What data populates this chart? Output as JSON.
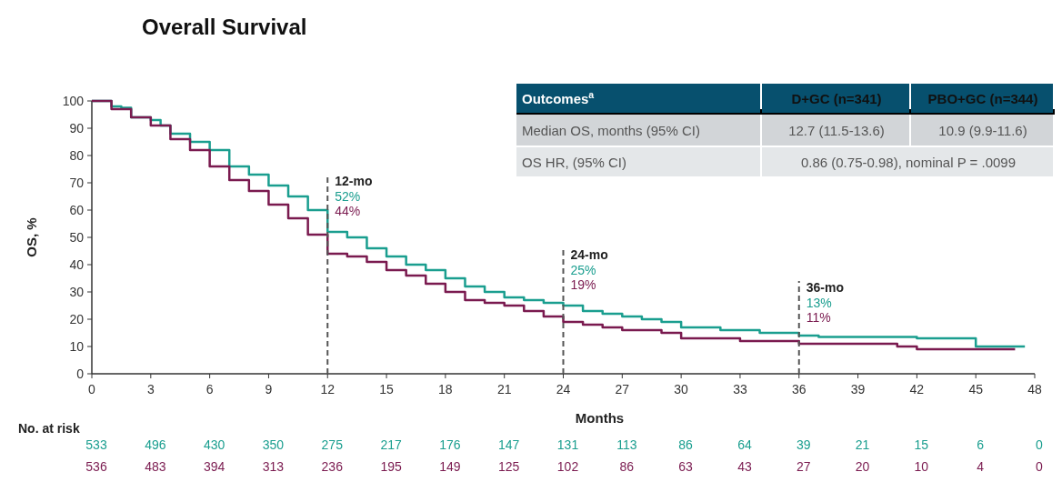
{
  "chart_data": {
    "type": "step",
    "title": "Overall Survival",
    "xlabel": "Months",
    "ylabel": "OS, %",
    "x": [
      0,
      1,
      1.5,
      2,
      3,
      3.5,
      4,
      5,
      6,
      7,
      8,
      9,
      10,
      11,
      12,
      13,
      14,
      15,
      16,
      17,
      18,
      19,
      20,
      21,
      22,
      23,
      24,
      25,
      26,
      27,
      28,
      29,
      30,
      32,
      34,
      36,
      37,
      42,
      45,
      47.5
    ],
    "series": [
      {
        "color": "#1a9e8f",
        "values": [
          100,
          98,
          97.5,
          94,
          93,
          91,
          88,
          85,
          82,
          76,
          73,
          69,
          65,
          60,
          52,
          50,
          46,
          43,
          40,
          38,
          35,
          32,
          30,
          28,
          27,
          26,
          25,
          23,
          22,
          21,
          20,
          19,
          17,
          16,
          15,
          14,
          13.5,
          13,
          10,
          10
        ]
      },
      {
        "color": "#7a1a4f",
        "x": [
          0,
          1,
          2,
          3,
          4,
          5,
          6,
          7,
          8,
          9,
          10,
          11,
          12,
          13,
          14,
          15,
          16,
          17,
          18,
          19,
          20,
          21,
          22,
          23,
          24,
          25,
          26,
          27,
          29,
          30,
          33,
          36,
          41,
          42,
          47
        ],
        "values": [
          100,
          97,
          94,
          91,
          86,
          82,
          76,
          71,
          67,
          62,
          57,
          51,
          44,
          43,
          41,
          38,
          36,
          33,
          30,
          27,
          26,
          25,
          23,
          21,
          19,
          18,
          17,
          16,
          15,
          13,
          12,
          11,
          10,
          9,
          9
        ]
      }
    ],
    "xlim": [
      0,
      48
    ],
    "xticks": [
      0,
      3,
      6,
      9,
      12,
      15,
      18,
      21,
      24,
      27,
      30,
      33,
      36,
      39,
      42,
      45,
      48
    ],
    "ylim": [
      0,
      100
    ],
    "yticks": [
      0,
      10,
      20,
      30,
      40,
      50,
      60,
      70,
      80,
      90,
      100
    ],
    "grid": false,
    "marker": "none",
    "line_style": "solid",
    "ref_lines": [
      {
        "axis": "x",
        "value": 12,
        "label": "12-mo",
        "line_style": "dashed"
      },
      {
        "axis": "x",
        "value": 24,
        "label": "24-mo",
        "line_style": "dashed"
      },
      {
        "axis": "x",
        "value": 36,
        "label": "36-mo",
        "line_style": "dashed"
      }
    ],
    "annotations": [
      "Outcomes$^{a}$",
      "D+GC (n=341)",
      "PBO+GC (n=344)",
      "Median OS, months (95% CI)",
      "12.7 (11.5-13.6)",
      "10.9 (9.9-11.6)",
      "OS HR, (95% CI)",
      "0.86 (0.75-0.98), nominal P = .0099",
      "No. at risk",
      "533 496 430 350 275 217 176 147 131 113 86 64 39 21 15 6 0",
      "536 483 394 313 236 195 149 125 102 86 63 43 27 20 10 4 0",
      {
        "text": "52%",
        "x": 12,
        "y": 52
      },
      {
        "text": "44%",
        "x": 12,
        "y": 44
      },
      {
        "text": "25%",
        "x": 24,
        "y": 25
      },
      {
        "text": "19%",
        "x": 24,
        "y": 19
      },
      {
        "text": "13%",
        "x": 36,
        "y": 13
      },
      {
        "text": "11%",
        "x": 36,
        "y": 11
      }
    ]
  }
}
